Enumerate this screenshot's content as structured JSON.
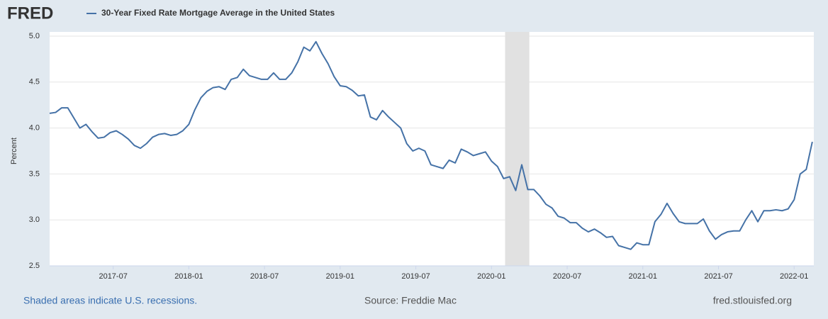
{
  "chart_data": {
    "type": "line",
    "logo": "FRED",
    "title": "30-Year Fixed Rate Mortgage Average in the United States",
    "ylabel": "Percent",
    "recession_note": "Shaded areas indicate U.S. recessions.",
    "source": "Source: Freddie Mac",
    "site": "fred.stlouisfed.org",
    "recessions": [
      [
        2020.09,
        2020.25
      ]
    ],
    "xlim": [
      2017.08,
      2022.13
    ],
    "ylim": [
      2.5,
      5.0
    ],
    "xticks": [
      {
        "value": 2017.5,
        "label": "2017-07"
      },
      {
        "value": 2018.0,
        "label": "2018-01"
      },
      {
        "value": 2018.5,
        "label": "2018-07"
      },
      {
        "value": 2019.0,
        "label": "2019-01"
      },
      {
        "value": 2019.5,
        "label": "2019-07"
      },
      {
        "value": 2020.0,
        "label": "2020-01"
      },
      {
        "value": 2020.5,
        "label": "2020-07"
      },
      {
        "value": 2021.0,
        "label": "2021-01"
      },
      {
        "value": 2021.5,
        "label": "2021-07"
      },
      {
        "value": 2022.0,
        "label": "2022-01"
      }
    ],
    "yticks": [
      2.5,
      {
        "value": 3,
        "label": "3.0"
      },
      3.5,
      {
        "value": 4,
        "label": "4.0"
      },
      4.5,
      {
        "value": 5,
        "label": "5.0"
      }
    ],
    "grid": true,
    "x": [
      2017.08,
      2017.12,
      2017.16,
      2017.2,
      2017.24,
      2017.28,
      2017.32,
      2017.36,
      2017.4,
      2017.44,
      2017.48,
      2017.52,
      2017.56,
      2017.6,
      2017.64,
      2017.68,
      2017.72,
      2017.76,
      2017.8,
      2017.84,
      2017.88,
      2017.92,
      2017.96,
      2018.0,
      2018.04,
      2018.08,
      2018.12,
      2018.16,
      2018.2,
      2018.24,
      2018.28,
      2018.32,
      2018.36,
      2018.4,
      2018.44,
      2018.48,
      2018.52,
      2018.56,
      2018.6,
      2018.64,
      2018.68,
      2018.72,
      2018.76,
      2018.8,
      2018.84,
      2018.88,
      2018.92,
      2018.96,
      2019.0,
      2019.04,
      2019.08,
      2019.12,
      2019.16,
      2019.2,
      2019.24,
      2019.28,
      2019.32,
      2019.36,
      2019.4,
      2019.44,
      2019.48,
      2019.52,
      2019.56,
      2019.6,
      2019.64,
      2019.68,
      2019.72,
      2019.76,
      2019.8,
      2019.84,
      2019.88,
      2019.92,
      2019.96,
      2020.0,
      2020.04,
      2020.08,
      2020.12,
      2020.16,
      2020.2,
      2020.24,
      2020.28,
      2020.32,
      2020.36,
      2020.4,
      2020.44,
      2020.48,
      2020.52,
      2020.56,
      2020.6,
      2020.64,
      2020.68,
      2020.72,
      2020.76,
      2020.8,
      2020.84,
      2020.88,
      2020.92,
      2020.96,
      2021.0,
      2021.04,
      2021.08,
      2021.12,
      2021.16,
      2021.2,
      2021.24,
      2021.28,
      2021.32,
      2021.36,
      2021.4,
      2021.44,
      2021.48,
      2021.52,
      2021.56,
      2021.6,
      2021.64,
      2021.68,
      2021.72,
      2021.76,
      2021.8,
      2021.84,
      2021.88,
      2021.92,
      2021.96,
      2022.0,
      2022.04,
      2022.08,
      2022.12
    ],
    "series": [
      {
        "name": "30-Year Fixed Rate Mortgage Average in the United States",
        "color": "#4572a7",
        "values": [
          4.16,
          4.17,
          4.22,
          4.22,
          4.11,
          4.0,
          4.04,
          3.96,
          3.89,
          3.9,
          3.95,
          3.97,
          3.93,
          3.88,
          3.81,
          3.78,
          3.83,
          3.9,
          3.93,
          3.94,
          3.92,
          3.93,
          3.97,
          4.04,
          4.2,
          4.33,
          4.4,
          4.44,
          4.45,
          4.42,
          4.53,
          4.55,
          4.64,
          4.57,
          4.55,
          4.53,
          4.53,
          4.6,
          4.53,
          4.53,
          4.6,
          4.72,
          4.88,
          4.84,
          4.94,
          4.81,
          4.7,
          4.56,
          4.46,
          4.45,
          4.41,
          4.35,
          4.36,
          4.12,
          4.09,
          4.19,
          4.12,
          4.06,
          4.0,
          3.83,
          3.75,
          3.78,
          3.75,
          3.6,
          3.58,
          3.56,
          3.65,
          3.62,
          3.77,
          3.74,
          3.7,
          3.72,
          3.74,
          3.64,
          3.58,
          3.45,
          3.47,
          3.32,
          3.6,
          3.33,
          3.33,
          3.26,
          3.17,
          3.13,
          3.04,
          3.02,
          2.97,
          2.97,
          2.91,
          2.87,
          2.9,
          2.86,
          2.81,
          2.82,
          2.72,
          2.7,
          2.68,
          2.75,
          2.73,
          2.73,
          2.98,
          3.06,
          3.18,
          3.07,
          2.98,
          2.96,
          2.96,
          2.96,
          3.01,
          2.88,
          2.79,
          2.84,
          2.87,
          2.88,
          2.88,
          3.0,
          3.1,
          2.98,
          3.1,
          3.1,
          3.11,
          3.1,
          3.12,
          3.22,
          3.5,
          3.55,
          3.85
        ]
      }
    ]
  }
}
